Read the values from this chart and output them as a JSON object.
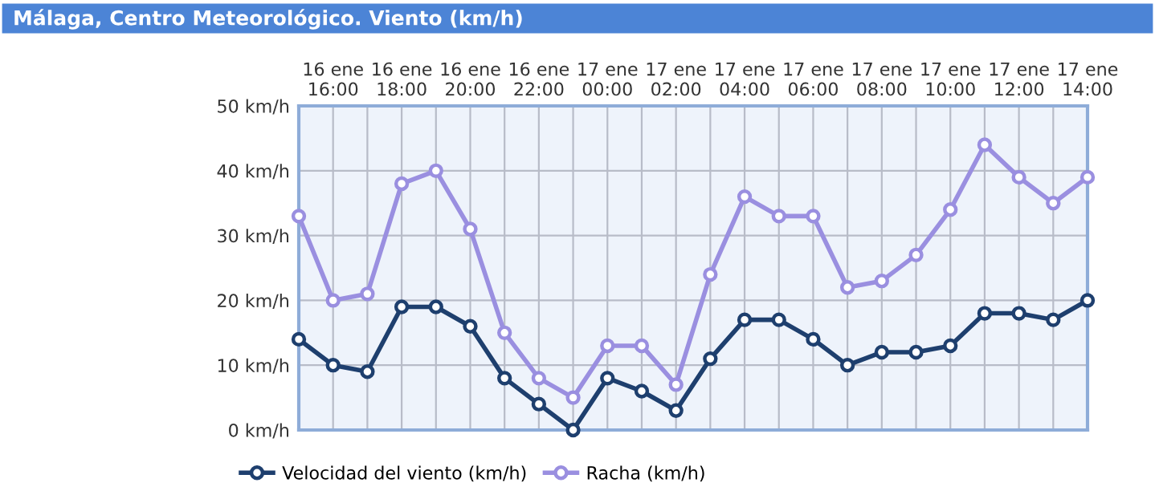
{
  "chart_data": {
    "type": "line",
    "title": "Málaga, Centro Meteorológico. Viento (km/h)",
    "categories": [
      null,
      "16 ene\n16:00",
      null,
      "16 ene\n18:00",
      null,
      "16 ene\n20:00",
      null,
      "16 ene\n22:00",
      null,
      "17 ene\n00:00",
      null,
      "17 ene\n02:00",
      null,
      "17 ene\n04:00",
      null,
      "17 ene\n06:00",
      null,
      "17 ene\n08:00",
      null,
      "17 ene\n10:00",
      null,
      "17 ene\n12:00",
      null,
      "17 ene\n14:00"
    ],
    "series": [
      {
        "name": "Velocidad del viento (km/h)",
        "color": "#1e3f6e",
        "values": [
          14,
          10,
          9,
          19,
          19,
          16,
          8,
          4,
          0,
          8,
          6,
          3,
          11,
          17,
          17,
          14,
          10,
          12,
          12,
          13,
          18,
          18,
          17,
          20
        ]
      },
      {
        "name": "Racha (km/h)",
        "color": "#9a8fe0",
        "values": [
          33,
          20,
          21,
          38,
          40,
          31,
          15,
          8,
          5,
          13,
          13,
          7,
          24,
          36,
          33,
          33,
          22,
          23,
          27,
          34,
          44,
          39,
          35,
          39
        ]
      }
    ],
    "ylim": [
      0,
      50
    ],
    "yticks": [
      {
        "value": 0,
        "label": "0 km/h"
      },
      {
        "value": 10,
        "label": "10 km/h"
      },
      {
        "value": 20,
        "label": "20 km/h"
      },
      {
        "value": 30,
        "label": "30 km/h"
      },
      {
        "value": 40,
        "label": "40 km/h"
      },
      {
        "value": 50,
        "label": "50 km/h"
      }
    ],
    "grid": true,
    "legend": "bottom left",
    "marker": "circle",
    "line_style": "solid"
  }
}
